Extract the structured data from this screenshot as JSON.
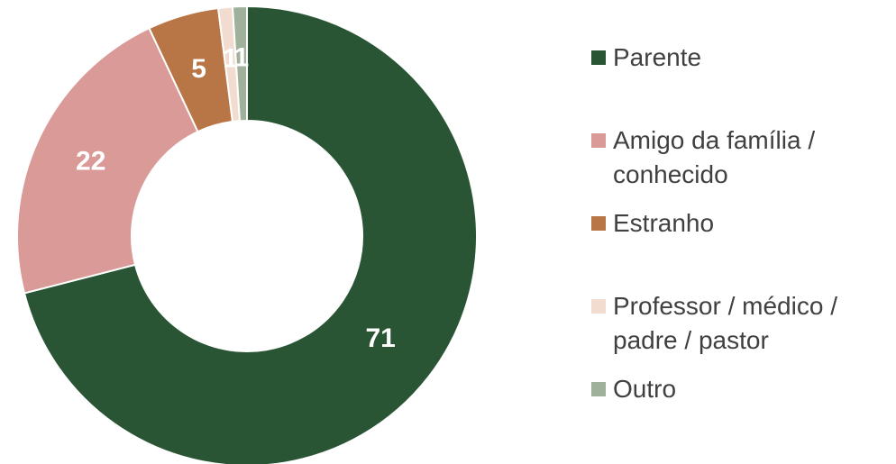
{
  "chart_data": {
    "type": "donut",
    "categories": [
      "Parente",
      "Amigo da família / conhecido",
      "Estranho",
      "Professor / médico / padre / pastor",
      "Outro"
    ],
    "values": [
      71,
      22,
      5,
      1,
      1
    ],
    "colors": [
      "#2a5535",
      "#d99a98",
      "#b87545",
      "#f2dccf",
      "#9fb09b"
    ],
    "legend": "right"
  }
}
